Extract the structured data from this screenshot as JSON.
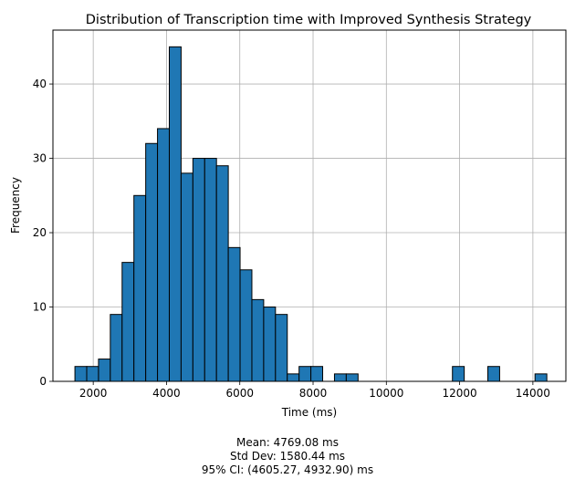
{
  "chart_data": {
    "type": "bar",
    "title": "Distribution of Transcription time with  Improved Synthesis Strategy",
    "xlabel": "Time (ms)",
    "ylabel": "Frequency",
    "xlim": [
      900,
      14900
    ],
    "ylim": [
      0,
      47.25
    ],
    "xticks": [
      2000,
      4000,
      6000,
      8000,
      10000,
      12000,
      14000
    ],
    "yticks": [
      0,
      10,
      20,
      30,
      40
    ],
    "grid": true,
    "bar_color": "#1f77b4",
    "edge_color": "#000000",
    "bins": [
      {
        "x0": 1500,
        "x1": 1822,
        "count": 2
      },
      {
        "x0": 1822,
        "x1": 2144,
        "count": 2
      },
      {
        "x0": 2144,
        "x1": 2466,
        "count": 3
      },
      {
        "x0": 2466,
        "x1": 2788,
        "count": 9
      },
      {
        "x0": 2788,
        "x1": 3110,
        "count": 16
      },
      {
        "x0": 3110,
        "x1": 3432,
        "count": 25
      },
      {
        "x0": 3432,
        "x1": 3754,
        "count": 32
      },
      {
        "x0": 3754,
        "x1": 4076,
        "count": 34
      },
      {
        "x0": 4076,
        "x1": 4398,
        "count": 45
      },
      {
        "x0": 4398,
        "x1": 4720,
        "count": 28
      },
      {
        "x0": 4720,
        "x1": 5042,
        "count": 30
      },
      {
        "x0": 5042,
        "x1": 5364,
        "count": 30
      },
      {
        "x0": 5364,
        "x1": 5686,
        "count": 29
      },
      {
        "x0": 5686,
        "x1": 6008,
        "count": 18
      },
      {
        "x0": 6008,
        "x1": 6330,
        "count": 15
      },
      {
        "x0": 6330,
        "x1": 6652,
        "count": 11
      },
      {
        "x0": 6652,
        "x1": 6974,
        "count": 10
      },
      {
        "x0": 6974,
        "x1": 7296,
        "count": 9
      },
      {
        "x0": 7296,
        "x1": 7618,
        "count": 1
      },
      {
        "x0": 7618,
        "x1": 7940,
        "count": 2
      },
      {
        "x0": 7940,
        "x1": 8262,
        "count": 2
      },
      {
        "x0": 8584,
        "x1": 8906,
        "count": 1
      },
      {
        "x0": 8906,
        "x1": 9228,
        "count": 1
      },
      {
        "x0": 11804,
        "x1": 12126,
        "count": 2
      },
      {
        "x0": 12770,
        "x1": 13092,
        "count": 2
      },
      {
        "x0": 14058,
        "x1": 14380,
        "count": 1
      }
    ]
  },
  "stats": {
    "mean": "Mean: 4769.08 ms",
    "std": "Std Dev: 1580.44 ms",
    "ci": "95% CI: (4605.27, 4932.90) ms"
  }
}
